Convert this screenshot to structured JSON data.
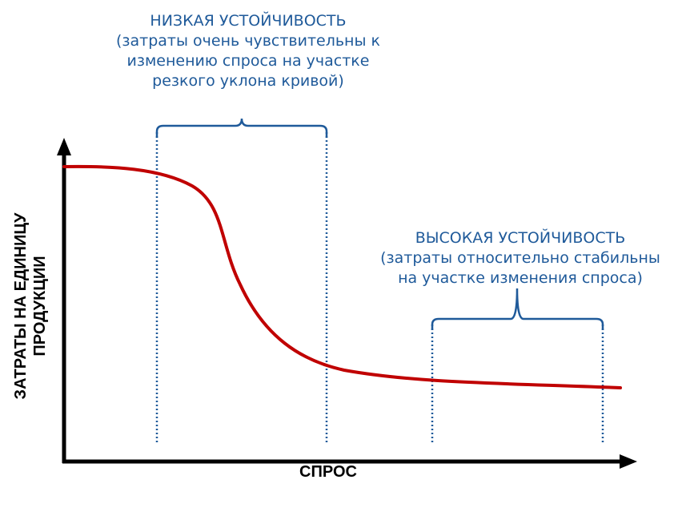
{
  "axes": {
    "x_label": "СПРОС",
    "y_label_line1": "ЗАТРАТЫ НА ЕДИНИЦУ",
    "y_label_line2": "ПРОДУКЦИИ"
  },
  "low_stability": {
    "heading": "НИЗКАЯ УСТОЙЧИВОСТЬ",
    "line1": "(затраты очень чувствительны к",
    "line2": "изменению спроса на участке",
    "line3": "резкого уклона кривой)"
  },
  "high_stability": {
    "heading": "ВЫСОКАЯ УСТОЙЧИВОСТЬ",
    "line1": "(затраты относительно стабильны",
    "line2": "на участке изменения спроса)"
  },
  "colors": {
    "curve": "#c00000",
    "annotation": "#1f5a9a",
    "axes": "#000000"
  }
}
